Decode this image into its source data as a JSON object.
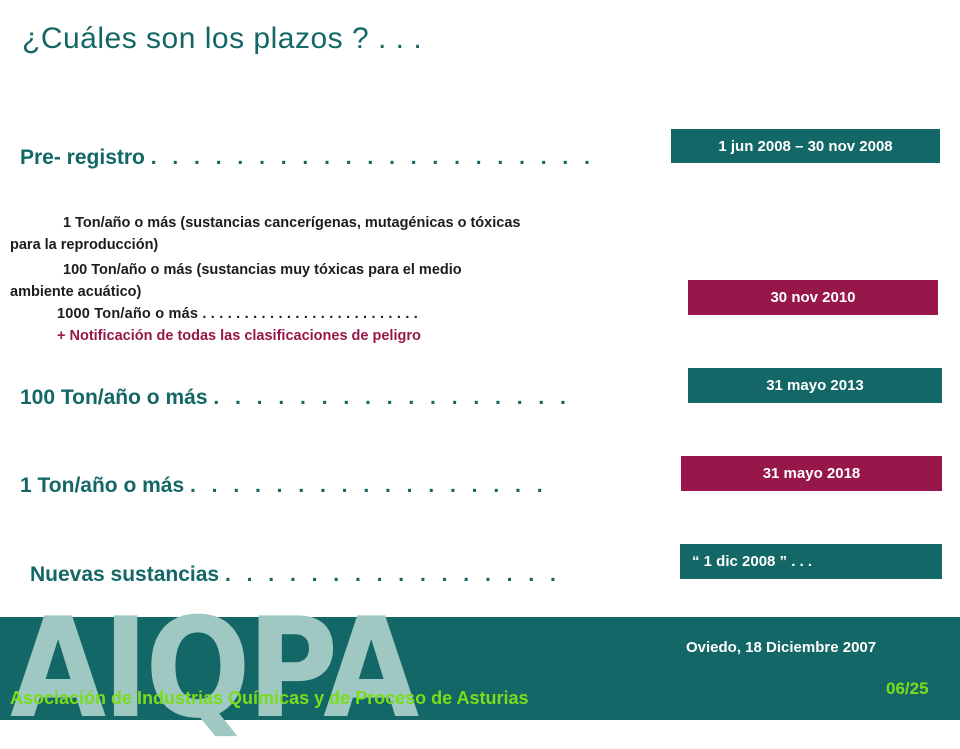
{
  "title": "¿Cuáles son los plazos ? . . .",
  "rows": {
    "pre_registro": {
      "label": "Pre- registro",
      "dots": ". . . . . . . . . . . . . . . . . . . . .",
      "date": "1 jun 2008 – 30 nov 2008"
    },
    "tier_2010": {
      "line1": "1 Ton/año o más (sustancias cancerígenas, mutagénicas o tóxicas",
      "line2": "para la reproducción)",
      "line3": "100 Ton/año o más (sustancias muy tóxicas para el medio",
      "line4": "ambiente acuático)",
      "line5": "1000 Ton/año o más . . . . . . . . . . . . . . . . . . . . . . . . . .",
      "line6": "+ Notificación de todas las clasificaciones de peligro",
      "date": "30 nov 2010"
    },
    "tier_100": {
      "label": "100 Ton/año o más",
      "dots": ". . . . . . . . . . . . . . . . .",
      "date": "31 mayo 2013"
    },
    "tier_1": {
      "label": "1 Ton/año o más",
      "dots": ". . . . . . . . . . . . . . . . .",
      "date": "31 mayo 2018"
    },
    "nuevas": {
      "label": "Nuevas sustancias",
      "dots": ". . . . . . . . . . . . . . . .",
      "date": "“ 1 dic 2008 ” . . ."
    }
  },
  "footer": {
    "logo": "AIQPA",
    "association": "Asociación de Industrias Químicas y de Proceso de Asturias",
    "place_date": "Oviedo, 18 Diciembre 2007",
    "page": "06/25"
  },
  "colors": {
    "teal": "#136766",
    "crimson": "#98174a",
    "footer_accent": "#7bdc1b",
    "logo": "#9ec8c1"
  }
}
